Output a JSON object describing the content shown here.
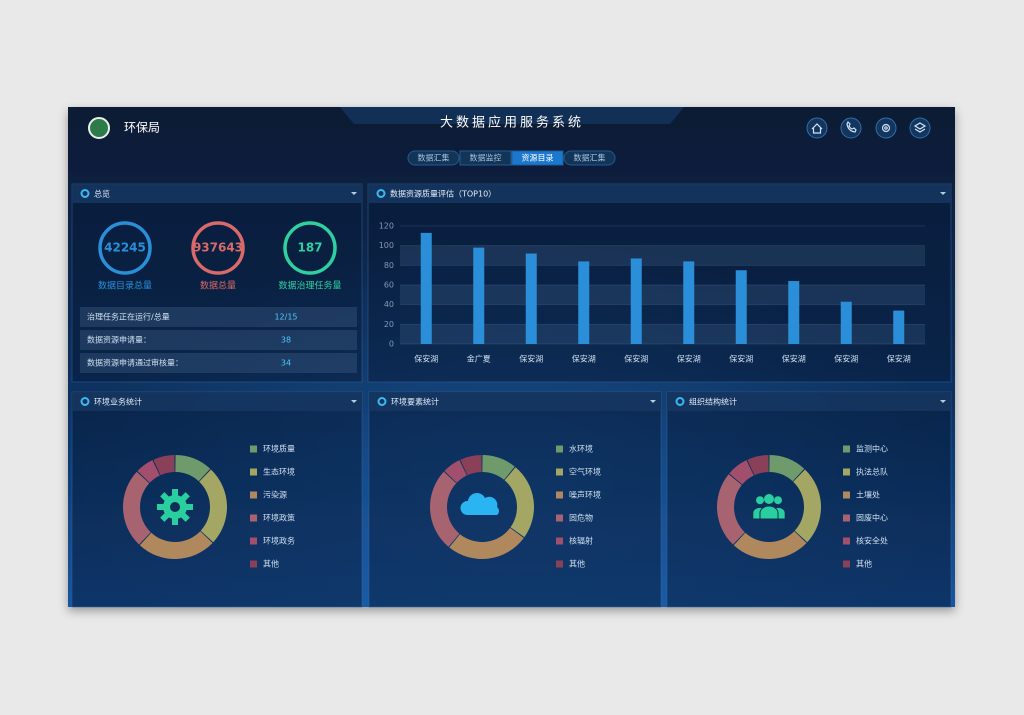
{
  "header": {
    "org": "环保局",
    "title": "大数据应用服务系统",
    "tabs": [
      "数据汇集",
      "数据监控",
      "资源目录",
      "数据汇集"
    ],
    "active_tab": 2
  },
  "overview": {
    "title": "总览",
    "stats": [
      {
        "value": 42245,
        "label": "数据目录总量",
        "color": "#2a8fd8"
      },
      {
        "value": 937643,
        "label": "数据总量",
        "color": "#d86a6a"
      },
      {
        "value": 187,
        "label": "数据治理任务量",
        "color": "#2fd0a0"
      }
    ],
    "rows": [
      {
        "label": "治理任务正在运行/总量",
        "value": "12/15"
      },
      {
        "label": "数据资源申请量：",
        "value": 38
      },
      {
        "label": "数据资源申请通过审核量：",
        "value": 34
      }
    ]
  },
  "quality": {
    "title": "数据资源质量评估（TOP10）",
    "chart": {
      "type": "bar",
      "categories": [
        "保安湖",
        "金广夏",
        "保安湖",
        "保安湖",
        "保安湖",
        "保安湖",
        "保安湖",
        "保安湖",
        "保安湖",
        "保安湖"
      ],
      "values": [
        113,
        98,
        92,
        84,
        87,
        84,
        75,
        64,
        43,
        34
      ],
      "color": "#2a8fd8",
      "ylim": [
        0,
        120
      ],
      "yticks": [
        0,
        20,
        40,
        60,
        80,
        100,
        120
      ],
      "grid": true
    }
  },
  "donuts": [
    {
      "title": "环境业务统计",
      "icon": "gear",
      "chart": {
        "type": "donut",
        "categories": [
          "环境质量",
          "生态环境",
          "污染源",
          "环境政策",
          "环境政务",
          "其他"
        ],
        "values": [
          12,
          25,
          25,
          25,
          6,
          7
        ],
        "colors": [
          "#6f9a6c",
          "#a3a763",
          "#b0885e",
          "#a86370",
          "#a24f6e",
          "#8a4058"
        ]
      }
    },
    {
      "title": "环境要素统计",
      "icon": "cloud",
      "chart": {
        "type": "donut",
        "categories": [
          "水环境",
          "空气环境",
          "噪声环境",
          "固危物",
          "核辐射",
          "其他"
        ],
        "values": [
          11,
          24,
          26,
          26,
          6,
          7
        ],
        "colors": [
          "#6f9a6c",
          "#a3a763",
          "#b0885e",
          "#a86370",
          "#a24f6e",
          "#8a4058"
        ]
      }
    },
    {
      "title": "组织结构统计",
      "icon": "people",
      "chart": {
        "type": "donut",
        "categories": [
          "监测中心",
          "执法总队",
          "土壤处",
          "固废中心",
          "核安全处",
          "其他"
        ],
        "values": [
          12,
          25,
          25,
          24,
          7,
          7
        ],
        "colors": [
          "#6f9a6c",
          "#a3a763",
          "#b0885e",
          "#a86370",
          "#a24f6e",
          "#8a4058"
        ]
      }
    }
  ]
}
